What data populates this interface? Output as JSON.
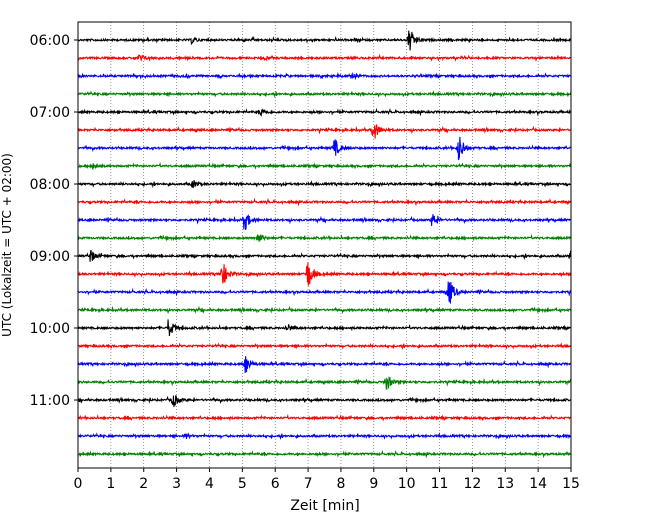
{
  "chart_data": {
    "type": "line",
    "xlabel": "Zeit  [min]",
    "ylabel": "UTC (Lokalzeit = UTC + 02:00)",
    "xlim": [
      0,
      15
    ],
    "x_ticks": [
      "0",
      "1",
      "2",
      "3",
      "4",
      "5",
      "6",
      "7",
      "8",
      "9",
      "10",
      "11",
      "12",
      "13",
      "14",
      "15"
    ],
    "y_ticks": [
      "06:00",
      "07:00",
      "08:00",
      "09:00",
      "10:00",
      "11:00"
    ],
    "grid": "vertical dotted",
    "trace_interval_min": 15,
    "colors": [
      "#000000",
      "#ff0000",
      "#0000ff",
      "#008000"
    ],
    "traces": [
      {
        "start": "06:00",
        "color": "#000000",
        "events": [
          {
            "x": 10.1,
            "amp": 12
          },
          {
            "x": 3.5,
            "amp": 3
          }
        ]
      },
      {
        "start": "06:15",
        "color": "#ff0000",
        "events": [
          {
            "x": 1.9,
            "amp": 3
          }
        ]
      },
      {
        "start": "06:30",
        "color": "#0000ff",
        "events": [
          {
            "x": 8.3,
            "amp": 4
          }
        ]
      },
      {
        "start": "06:45",
        "color": "#008000",
        "events": []
      },
      {
        "start": "07:00",
        "color": "#000000",
        "events": [
          {
            "x": 5.6,
            "amp": 3
          }
        ]
      },
      {
        "start": "07:15",
        "color": "#ff0000",
        "events": [
          {
            "x": 9.0,
            "amp": 11
          }
        ]
      },
      {
        "start": "07:30",
        "color": "#0000ff",
        "events": [
          {
            "x": 7.8,
            "amp": 10
          },
          {
            "x": 11.6,
            "amp": 14
          }
        ]
      },
      {
        "start": "07:45",
        "color": "#008000",
        "events": [
          {
            "x": 0.5,
            "amp": 3
          }
        ]
      },
      {
        "start": "08:00",
        "color": "#000000",
        "events": [
          {
            "x": 3.5,
            "amp": 4
          }
        ]
      },
      {
        "start": "08:15",
        "color": "#ff0000",
        "events": []
      },
      {
        "start": "08:30",
        "color": "#0000ff",
        "events": [
          {
            "x": 5.1,
            "amp": 9
          },
          {
            "x": 10.8,
            "amp": 6
          }
        ]
      },
      {
        "start": "08:45",
        "color": "#008000",
        "events": [
          {
            "x": 5.5,
            "amp": 5
          }
        ]
      },
      {
        "start": "09:00",
        "color": "#000000",
        "events": [
          {
            "x": 0.4,
            "amp": 6
          },
          {
            "x": 15.0,
            "amp": 5
          }
        ]
      },
      {
        "start": "09:15",
        "color": "#ff0000",
        "events": [
          {
            "x": 4.4,
            "amp": 13
          },
          {
            "x": 7.0,
            "amp": 14
          }
        ]
      },
      {
        "start": "09:30",
        "color": "#0000ff",
        "events": [
          {
            "x": 11.3,
            "amp": 14
          }
        ]
      },
      {
        "start": "09:45",
        "color": "#008000",
        "events": []
      },
      {
        "start": "10:00",
        "color": "#000000",
        "events": [
          {
            "x": 2.8,
            "amp": 8
          },
          {
            "x": 6.4,
            "amp": 3
          }
        ]
      },
      {
        "start": "10:15",
        "color": "#ff0000",
        "events": []
      },
      {
        "start": "10:30",
        "color": "#0000ff",
        "events": [
          {
            "x": 5.1,
            "amp": 10
          }
        ]
      },
      {
        "start": "10:45",
        "color": "#008000",
        "events": [
          {
            "x": 9.4,
            "amp": 8
          }
        ]
      },
      {
        "start": "11:00",
        "color": "#000000",
        "events": [
          {
            "x": 2.9,
            "amp": 7
          }
        ]
      },
      {
        "start": "11:15",
        "color": "#ff0000",
        "events": []
      },
      {
        "start": "11:30",
        "color": "#0000ff",
        "events": [
          {
            "x": 3.3,
            "amp": 2
          }
        ]
      },
      {
        "start": "11:45",
        "color": "#008000",
        "events": []
      }
    ]
  }
}
